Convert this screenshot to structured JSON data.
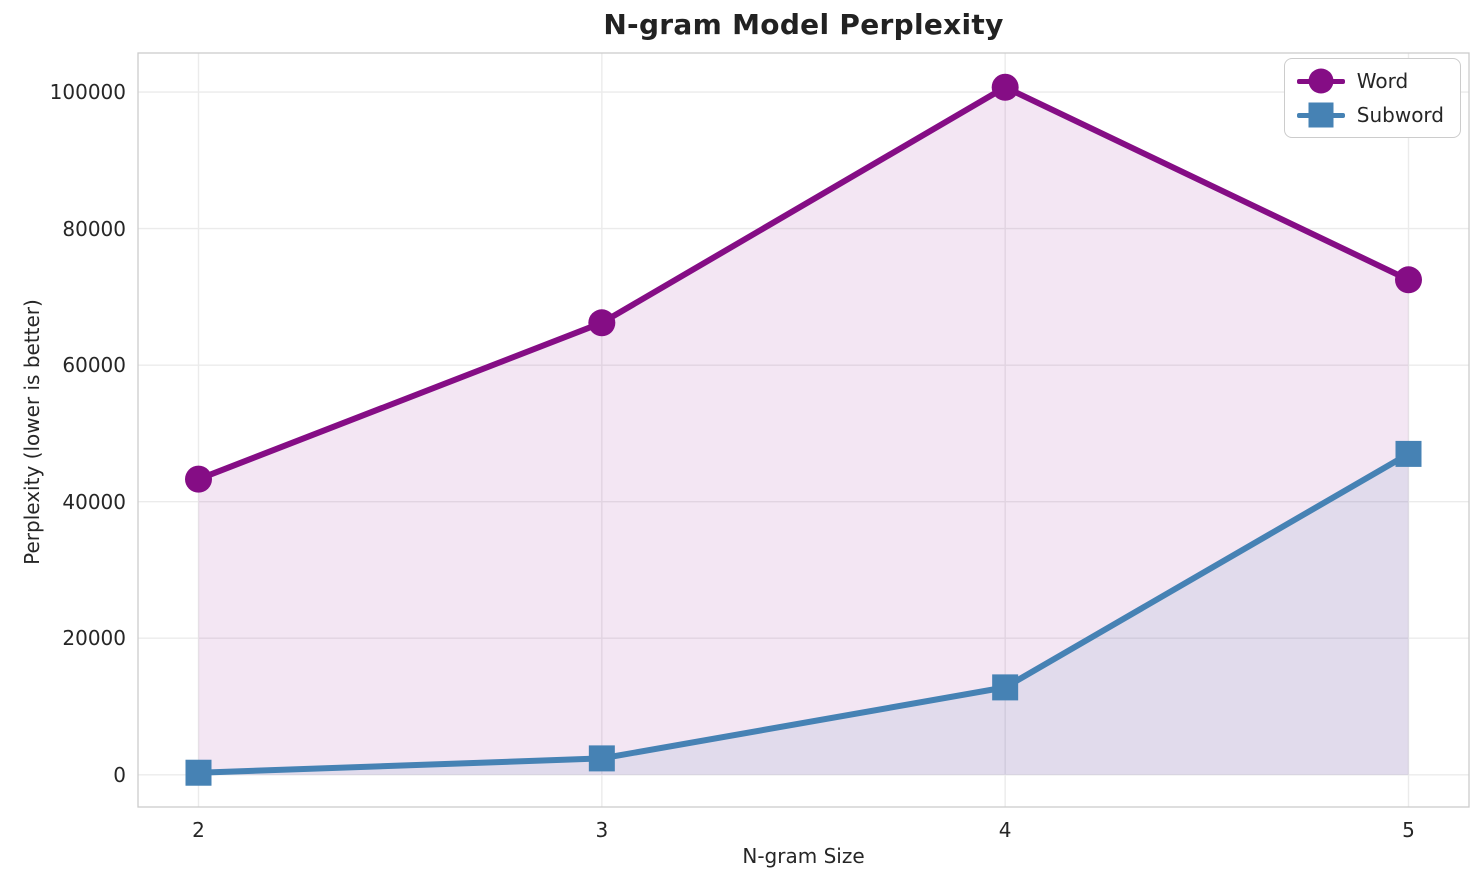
{
  "title": "N-gram Model Perplexity",
  "colors": {
    "word": "#850d85",
    "subword": "#4682b4",
    "grid": "#ebebeb",
    "spine": "#cccccc",
    "text": "#262626",
    "background": "#ffffff"
  },
  "legend": {
    "position": "upper right",
    "entries": [
      {
        "label": "Word",
        "marker": "circle-marker-icon",
        "color": "#850d85"
      },
      {
        "label": "Subword",
        "marker": "square-marker-icon",
        "color": "#4682b4"
      }
    ]
  },
  "chart_data": {
    "type": "line",
    "title": "N-gram Model Perplexity",
    "xlabel": "N-gram Size",
    "ylabel": "Perplexity (lower is better)",
    "x": [
      2,
      3,
      4,
      5
    ],
    "x_tick_labels": [
      "2",
      "3",
      "4",
      "5"
    ],
    "y_ticks": [
      0,
      20000,
      40000,
      60000,
      80000,
      100000
    ],
    "xlim": [
      1.85,
      5.15
    ],
    "ylim": [
      -4720,
      105720
    ],
    "grid": true,
    "legend_position": "upper right",
    "series": [
      {
        "name": "Word",
        "marker": "circle",
        "color": "#850d85",
        "area_fill": true,
        "fill_alpha": 0.1,
        "values": [
          43300,
          66200,
          100700,
          72500
        ]
      },
      {
        "name": "Subword",
        "marker": "square",
        "color": "#4682b4",
        "area_fill": true,
        "fill_alpha": 0.1,
        "values": [
          300,
          2400,
          12800,
          47000
        ]
      }
    ]
  }
}
